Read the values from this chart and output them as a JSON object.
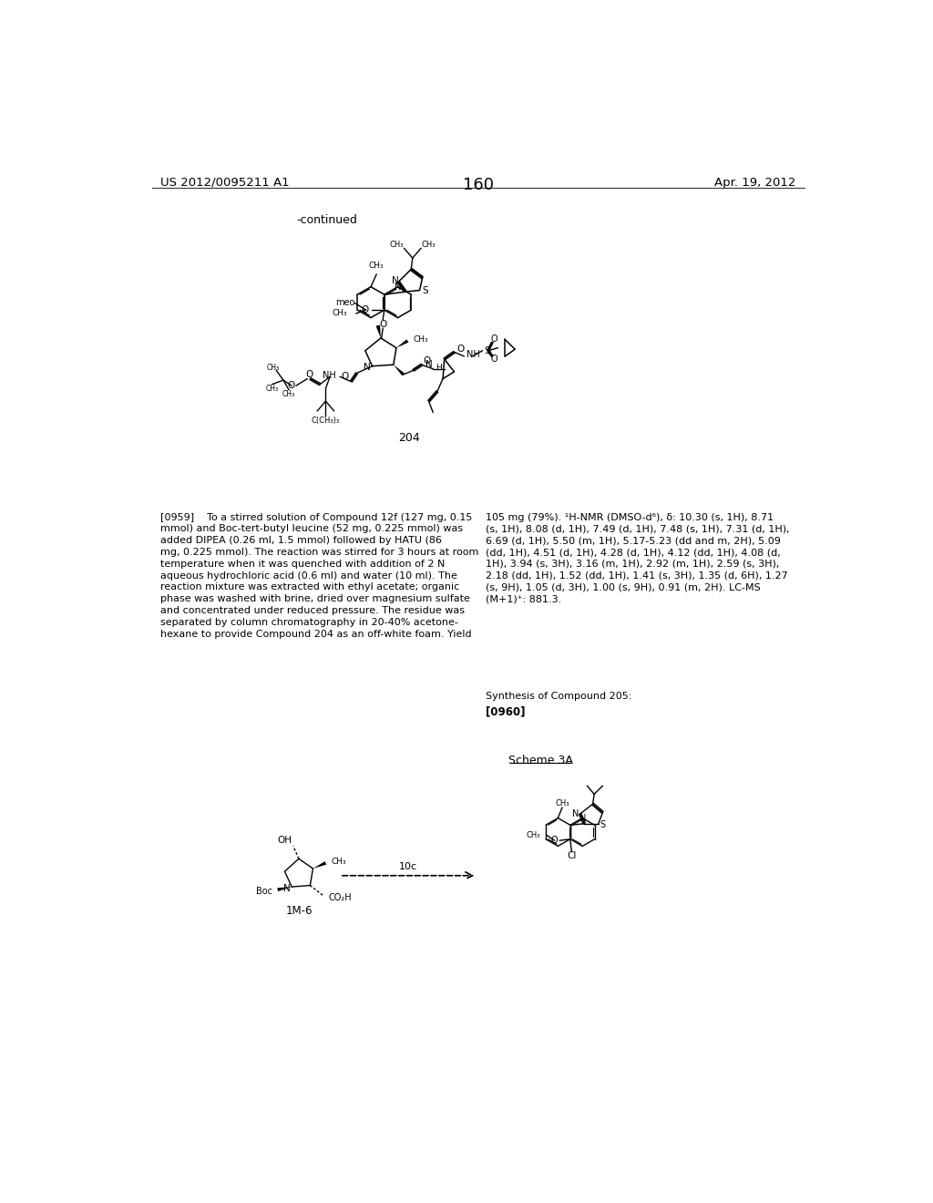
{
  "page_number": "160",
  "header_left": "US 2012/0095211 A1",
  "header_right": "Apr. 19, 2012",
  "continued_label": "-continued",
  "compound_204_label": "204",
  "paragraph_0959_left": "[0959]    To a stirred solution of Compound 12f (127 mg, 0.15\nmmol) and Boc-tert-butyl leucine (52 mg, 0.225 mmol) was\nadded DIPEA (0.26 ml, 1.5 mmol) followed by HATU (86\nmg, 0.225 mmol). The reaction was stirred for 3 hours at room\ntemperature when it was quenched with addition of 2 N\naqueous hydrochloric acid (0.6 ml) and water (10 ml). The\nreaction mixture was extracted with ethyl acetate; organic\nphase was washed with brine, dried over magnesium sulfate\nand concentrated under reduced pressure. The residue was\nseparated by column chromatography in 20-40% acetone-\nhexane to provide Compound 204 as an off-white foam. Yield",
  "paragraph_0959_right": "105 mg (79%). ¹H-NMR (DMSO-d⁶), δ: 10.30 (s, 1H), 8.71\n(s, 1H), 8.08 (d, 1H), 7.49 (d, 1H), 7.48 (s, 1H), 7.31 (d, 1H),\n6.69 (d, 1H), 5.50 (m, 1H), 5.17-5.23 (dd and m, 2H), 5.09\n(dd, 1H), 4.51 (d, 1H), 4.28 (d, 1H), 4.12 (dd, 1H), 4.08 (d,\n1H), 3.94 (s, 3H), 3.16 (m, 1H), 2.92 (m, 1H), 2.59 (s, 3H),\n2.18 (dd, 1H), 1.52 (dd, 1H), 1.41 (s, 3H), 1.35 (d, 6H), 1.27\n(s, 9H), 1.05 (d, 3H), 1.00 (s, 9H), 0.91 (m, 2H). LC-MS\n(M+1)⁺: 881.3.",
  "synthesis_label": "Synthesis of Compound 205:",
  "paragraph_0960": "[0960]",
  "scheme_label": "Scheme 3A",
  "compound_1m6_label": "1M-6",
  "reagent_label": "10c",
  "bg_color": "#ffffff",
  "text_color": "#000000",
  "font_size_header": 9.5,
  "font_size_body": 8.0,
  "font_size_page": 13
}
